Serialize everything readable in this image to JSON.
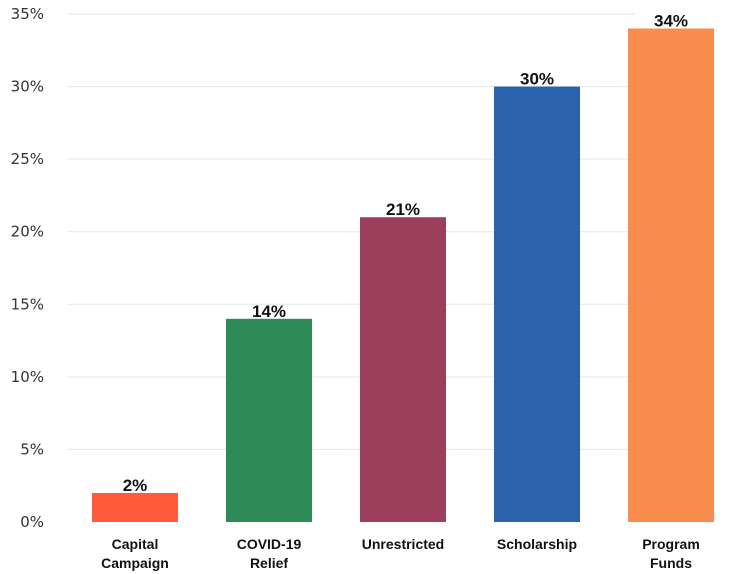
{
  "chart_data": {
    "type": "bar",
    "categories": [
      [
        "Capital",
        "Campaign"
      ],
      [
        "COVID-19",
        "Relief"
      ],
      [
        "Unrestricted"
      ],
      [
        "Scholarship"
      ],
      [
        "Program",
        "Funds"
      ]
    ],
    "values": [
      2,
      14,
      21,
      30,
      34
    ],
    "data_labels": [
      "2%",
      "14%",
      "21%",
      "30%",
      "34%"
    ],
    "colors": [
      "#ff5a3c",
      "#2e8b57",
      "#9b3f5c",
      "#2a62ac",
      "#fa8c50"
    ],
    "ylim": [
      0,
      35
    ],
    "yticks": [
      0,
      5,
      10,
      15,
      20,
      25,
      30,
      35
    ],
    "ytick_labels": [
      "0%",
      "5%",
      "10%",
      "15%",
      "20%",
      "25%",
      "30%",
      "35%"
    ],
    "title": "",
    "xlabel": "",
    "ylabel": "",
    "grid": true,
    "legend": "none"
  }
}
